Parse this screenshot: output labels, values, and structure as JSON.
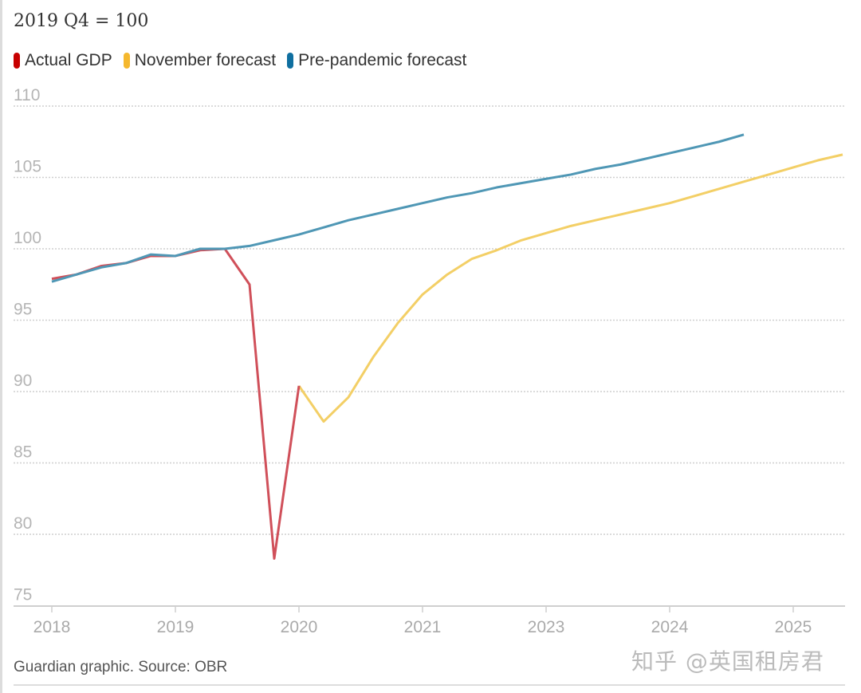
{
  "chart_data": {
    "type": "line",
    "subtitle": "2019 Q4 = 100",
    "source": "Guardian graphic. Source: OBR",
    "watermark": "知乎 @英国租房君",
    "ylim": [
      75,
      110
    ],
    "yticks": [
      110,
      105,
      100,
      95,
      90,
      85,
      80,
      75
    ],
    "xlim": [
      0,
      32
    ],
    "xticks": [
      {
        "x": 0,
        "label": "2018"
      },
      {
        "x": 5,
        "label": "2019"
      },
      {
        "x": 10,
        "label": "2020"
      },
      {
        "x": 15,
        "label": "2021"
      },
      {
        "x": 20,
        "label": "2023"
      },
      {
        "x": 25,
        "label": "2024"
      },
      {
        "x": 30,
        "label": "2025"
      }
    ],
    "grid": true,
    "legend_position": "top-left",
    "series": [
      {
        "name": "November forecast",
        "color": "#f5b82e",
        "line_color": "#f3cf66",
        "x": [
          10,
          11,
          12,
          13,
          14,
          15,
          16,
          17,
          18,
          19,
          20,
          21,
          22,
          23,
          24,
          25,
          26,
          27,
          28,
          29,
          30,
          31,
          32
        ],
        "values": [
          90.4,
          87.9,
          89.6,
          92.4,
          94.8,
          96.8,
          98.2,
          99.3,
          99.9,
          100.6,
          101.1,
          101.6,
          102.0,
          102.4,
          102.8,
          103.2,
          103.7,
          104.2,
          104.7,
          105.2,
          105.7,
          106.2,
          106.6
        ]
      },
      {
        "name": "Actual GDP",
        "color": "#c70000",
        "line_color": "#d0505a",
        "x": [
          0,
          1,
          2,
          3,
          4,
          5,
          6,
          7,
          8,
          9,
          10
        ],
        "values": [
          97.9,
          98.2,
          98.8,
          99.0,
          99.5,
          99.5,
          99.9,
          100.0,
          97.5,
          78.3,
          90.4
        ]
      },
      {
        "name": "Pre-pandemic forecast",
        "color": "#0f6fa0",
        "line_color": "#4f97b5",
        "x": [
          0,
          1,
          2,
          3,
          4,
          5,
          6,
          7,
          8,
          9,
          10,
          11,
          12,
          13,
          14,
          15,
          16,
          17,
          18,
          19,
          20,
          21,
          22,
          23,
          24,
          25,
          26,
          27,
          28
        ],
        "values": [
          97.7,
          98.2,
          98.7,
          99.0,
          99.6,
          99.5,
          100.0,
          100.0,
          100.2,
          100.6,
          101.0,
          101.5,
          102.0,
          102.4,
          102.8,
          103.2,
          103.6,
          103.9,
          104.3,
          104.6,
          104.9,
          105.2,
          105.6,
          105.9,
          106.3,
          106.7,
          107.1,
          107.5,
          108.0
        ]
      }
    ],
    "legend_order": [
      1,
      0,
      2
    ]
  }
}
